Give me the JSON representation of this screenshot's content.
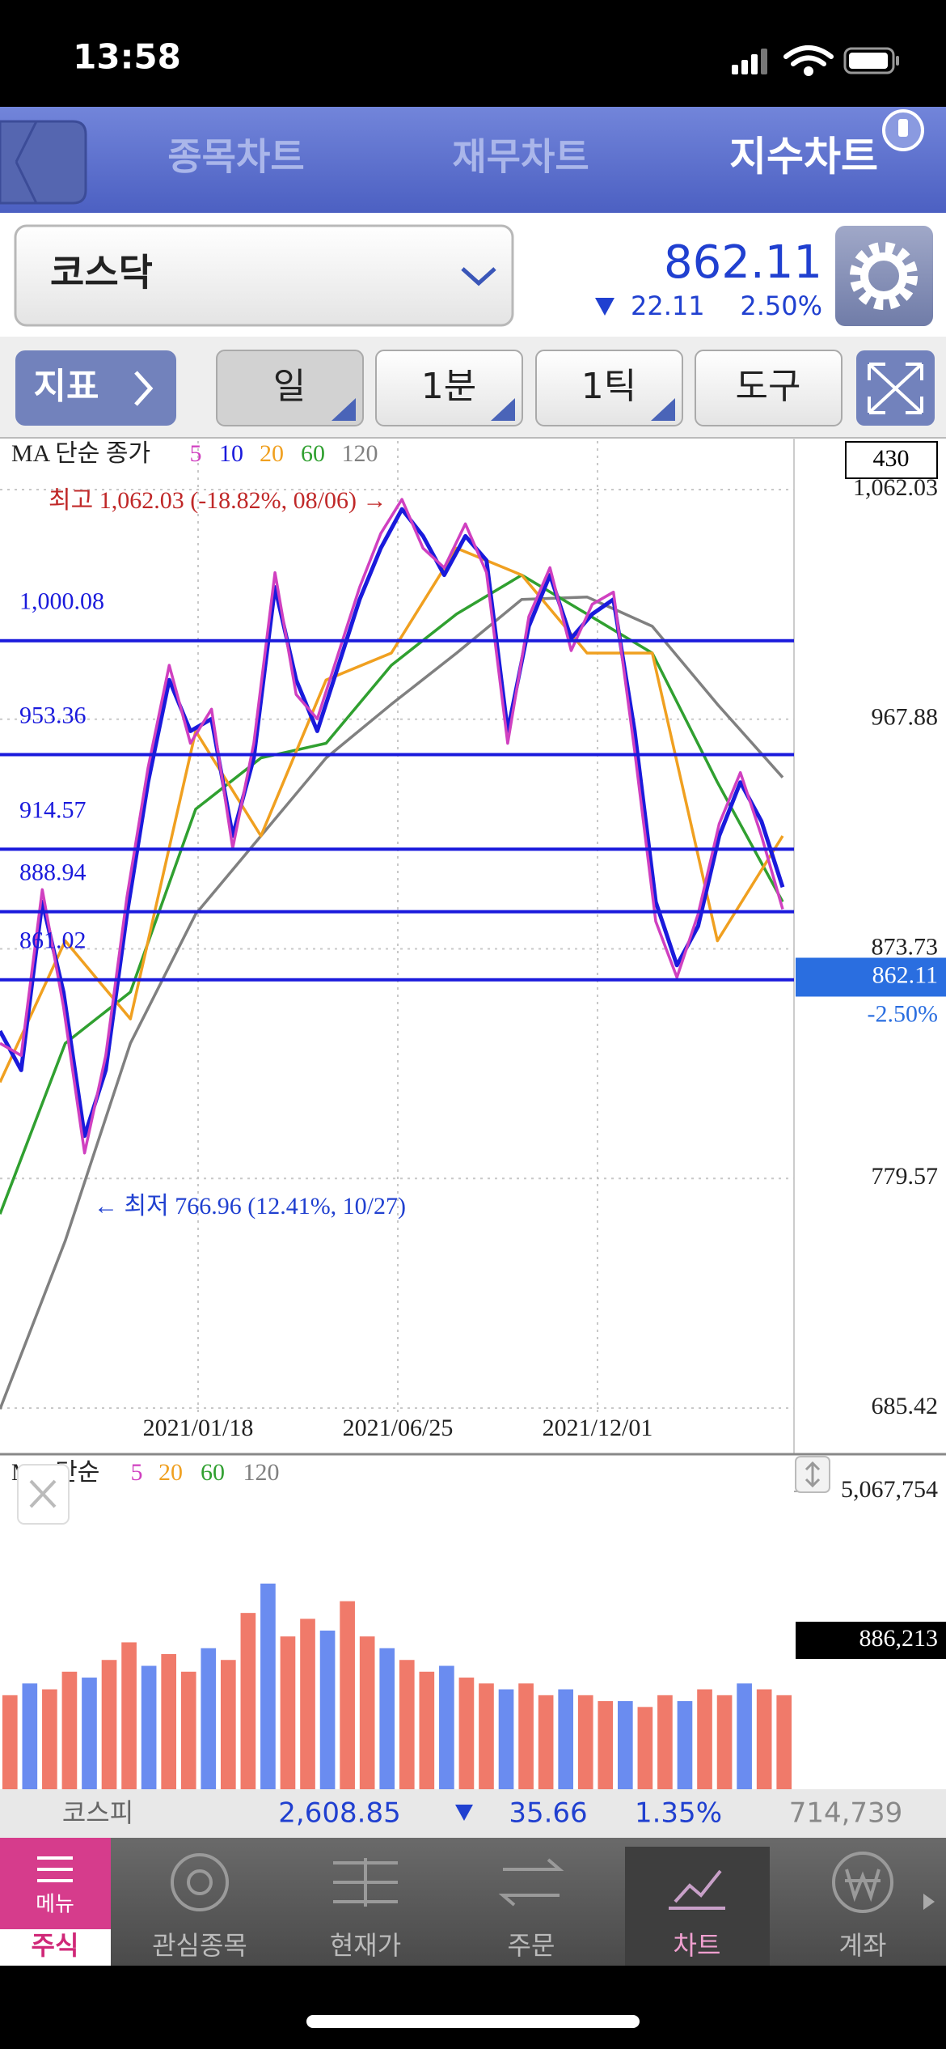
{
  "status_bar": {
    "time": "13:58"
  },
  "tabs": [
    "종목차트",
    "재무차트",
    "지수차트"
  ],
  "index": {
    "name": "코스닥",
    "price": "862.11",
    "change": "22.11",
    "change_pct": "2.50%"
  },
  "toolbar": {
    "indicator": "지표",
    "period": "일",
    "minute": "1분",
    "tick": "1틱",
    "tools": "도구"
  },
  "chart_data": [
    {
      "type": "line",
      "legend_title": "MA 단순 종가",
      "visible_count": 430,
      "series": [
        {
          "name": "5",
          "color": "#d040c0",
          "values": [
            835,
            830,
            898,
            850,
            790,
            830,
            895,
            948,
            990,
            958,
            972,
            915,
            958,
            1028,
            978,
            968,
            995,
            1022,
            1044,
            1058,
            1038,
            1030,
            1048,
            1028,
            958,
            1010,
            1030,
            996,
            1015,
            1020,
            955,
            885,
            862,
            888,
            925,
            946,
            920,
            890
          ]
        },
        {
          "name": "10",
          "color": "#1a1adc",
          "values": [
            840,
            824,
            893,
            856,
            797,
            824,
            888,
            942,
            984,
            963,
            968,
            920,
            952,
            1022,
            984,
            963,
            990,
            1017,
            1038,
            1054,
            1043,
            1027,
            1043,
            1033,
            963,
            1006,
            1027,
            1001,
            1011,
            1017,
            963,
            893,
            867,
            883,
            920,
            942,
            926,
            899
          ]
        },
        {
          "name": "20",
          "color": "#f0a020",
          "values": [
            819,
            877,
            845,
            963,
            920,
            984,
            995,
            1038,
            1027,
            995,
            995,
            877,
            920
          ]
        },
        {
          "name": "60",
          "color": "#30a030",
          "values": [
            765,
            835,
            856,
            931,
            952,
            958,
            990,
            1011,
            1027,
            1011,
            995,
            942,
            893
          ]
        },
        {
          "name": "120",
          "color": "#808080",
          "values": [
            685,
            754,
            835,
            888,
            920,
            952,
            974,
            995,
            1017,
            1018,
            1006,
            974,
            944
          ]
        }
      ],
      "ylim": [
        685.42,
        1062.03
      ],
      "yticks": [
        {
          "value": 1062.03,
          "label": "1,062.03"
        },
        967.88,
        873.73,
        779.57,
        685.42
      ],
      "levels": [
        {
          "value": 1000.08,
          "label": "1,000.08"
        },
        953.36,
        914.57,
        888.94,
        861.02
      ],
      "level_color": "#1a1adc",
      "annotations": [
        {
          "text": "최고 1,062.03 (-18.82%, 08/06) →",
          "color": "#c02828"
        },
        {
          "text": "← 최저 766.96 (12.41%, 10/27)",
          "color": "#2040d0"
        }
      ],
      "x_labels": [
        "2021/01/18",
        "2021/06/25",
        "2021/12/01"
      ],
      "current": {
        "value": 862.11,
        "change": "-2.50%"
      },
      "grid": true
    },
    {
      "type": "bar",
      "legend_title": "MA 단순",
      "ma_legend": [
        {
          "name": "5",
          "color": "#d040c0"
        },
        {
          "name": "20",
          "color": "#f0a020"
        },
        {
          "name": "60",
          "color": "#30a030"
        },
        {
          "name": "120",
          "color": "#808080"
        }
      ],
      "values": [
        1600000,
        1800000,
        1700000,
        2000000,
        1900000,
        2200000,
        2500000,
        2100000,
        2300000,
        2000000,
        2400000,
        2200000,
        3000000,
        3500000,
        2600000,
        2900000,
        2700000,
        3200000,
        2600000,
        2400000,
        2200000,
        2000000,
        2100000,
        1900000,
        1800000,
        1700000,
        1800000,
        1600000,
        1700000,
        1600000,
        1500000,
        1500000,
        1400000,
        1600000,
        1500000,
        1700000,
        1600000,
        1800000,
        1700000,
        1600000
      ],
      "color": "#f07a6a",
      "alt_color": "#6a8cf0",
      "ylim": [
        0,
        5067754
      ],
      "yticks": [
        {
          "value": 5067754,
          "label": "5,067,754"
        }
      ],
      "current": {
        "value": 886213,
        "label": "886,213"
      }
    }
  ],
  "ticker": {
    "name": "코스피",
    "value": "2,608.85",
    "change": "35.66",
    "change_pct": "1.35%",
    "volume": "714,739"
  },
  "nav": {
    "menu": "메뉴",
    "items": [
      "주식",
      "관심종목",
      "현재가",
      "주문",
      "차트",
      "계좌"
    ]
  }
}
